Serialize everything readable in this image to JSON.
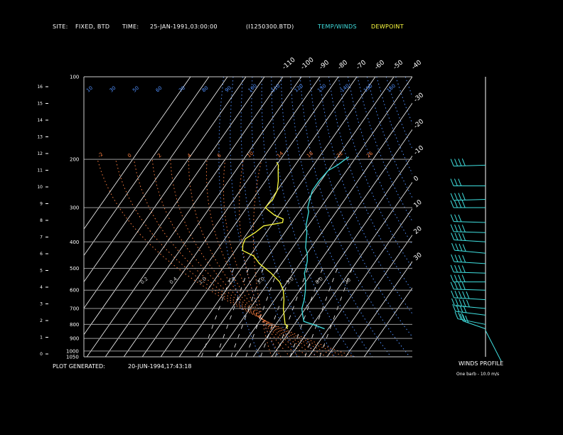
{
  "header": {
    "site_label": "SITE:",
    "site_value": "FIXED, BTD",
    "time_label": "TIME:",
    "time_value": "25-JAN-1991,03:00:00",
    "file_id": "(I1250300.BTD)",
    "legend_temp": "TEMP/WINDS",
    "legend_dew": "DEWPOINT"
  },
  "footer": {
    "generated_label": "PLOT GENERATED:",
    "generated_value": "20-JUN-1994,17:43:18",
    "winds_title": "WINDS PROFILE",
    "barb_note": "One barb - 10.0 m/s"
  },
  "colors": {
    "temperature": "#40e0e0",
    "dewpoint": "#ffff40",
    "isotherm": "#ffffff",
    "dry_adiabat": "#5090ff",
    "moist_adiabat": "#ff8040",
    "mixing_ratio": "#ffffff",
    "background": "#000000"
  },
  "chart_data": {
    "type": "skew-t",
    "pressure_levels": [
      100,
      200,
      300,
      400,
      500,
      600,
      700,
      800,
      900,
      1000,
      1050
    ],
    "height_ticks": [
      "0",
      "1",
      "2",
      "3",
      "4",
      "5",
      "6",
      "7",
      "8",
      "9",
      "10",
      "11",
      "12",
      "13",
      "14",
      "15",
      "16"
    ],
    "isotherm_labels": [
      "-110",
      "-100",
      "-90",
      "-80",
      "-70",
      "-60",
      "-50",
      "-40",
      "-30",
      "-20",
      "-10",
      "0",
      "10",
      "20",
      "30"
    ],
    "dry_adiabat_labels": [
      "10",
      "30",
      "50",
      "60",
      "70",
      "80",
      "90",
      "100",
      "110",
      "120",
      "130",
      "140",
      "150",
      "160"
    ],
    "moist_adiabat_labels": [
      "-2",
      "0",
      "2",
      "4",
      "6",
      "10",
      "14",
      "18",
      "22",
      "26"
    ],
    "mixing_ratio_labels": [
      "0.2",
      "0.4",
      "1.0",
      "2.0",
      "3.0",
      "5.0",
      "8.0",
      "20"
    ],
    "temperature_profile": [
      {
        "p": 830,
        "t": 8
      },
      {
        "p": 800,
        "t": 0
      },
      {
        "p": 780,
        "t": -6
      },
      {
        "p": 740,
        "t": -9
      },
      {
        "p": 700,
        "t": -12
      },
      {
        "p": 650,
        "t": -14
      },
      {
        "p": 600,
        "t": -17
      },
      {
        "p": 560,
        "t": -20
      },
      {
        "p": 520,
        "t": -24
      },
      {
        "p": 500,
        "t": -25
      },
      {
        "p": 470,
        "t": -27
      },
      {
        "p": 440,
        "t": -30
      },
      {
        "p": 420,
        "t": -33
      },
      {
        "p": 390,
        "t": -36
      },
      {
        "p": 370,
        "t": -38
      },
      {
        "p": 350,
        "t": -41
      },
      {
        "p": 330,
        "t": -43
      },
      {
        "p": 310,
        "t": -45
      },
      {
        "p": 300,
        "t": -47
      },
      {
        "p": 280,
        "t": -49
      },
      {
        "p": 260,
        "t": -51
      },
      {
        "p": 240,
        "t": -51
      },
      {
        "p": 220,
        "t": -50
      },
      {
        "p": 210,
        "t": -47
      },
      {
        "p": 200,
        "t": -45
      },
      {
        "p": 196,
        "t": -44
      }
    ],
    "dewpoint_profile": [
      {
        "p": 830,
        "t": -12
      },
      {
        "p": 820,
        "t": -13
      },
      {
        "p": 810,
        "t": -13
      },
      {
        "p": 800,
        "t": -15
      },
      {
        "p": 700,
        "t": -22
      },
      {
        "p": 650,
        "t": -25
      },
      {
        "p": 600,
        "t": -29
      },
      {
        "p": 560,
        "t": -34
      },
      {
        "p": 520,
        "t": -42
      },
      {
        "p": 480,
        "t": -52
      },
      {
        "p": 450,
        "t": -58
      },
      {
        "p": 430,
        "t": -66
      },
      {
        "p": 410,
        "t": -68
      },
      {
        "p": 390,
        "t": -69
      },
      {
        "p": 370,
        "t": -66
      },
      {
        "p": 350,
        "t": -64
      },
      {
        "p": 340,
        "t": -55
      },
      {
        "p": 330,
        "t": -56
      },
      {
        "p": 320,
        "t": -62
      },
      {
        "p": 310,
        "t": -66
      },
      {
        "p": 300,
        "t": -70
      },
      {
        "p": 280,
        "t": -69
      },
      {
        "p": 260,
        "t": -70
      },
      {
        "p": 240,
        "t": -73
      },
      {
        "p": 220,
        "t": -77
      },
      {
        "p": 210,
        "t": -79
      },
      {
        "p": 205,
        "t": -81
      }
    ],
    "wind_profile": [
      {
        "p": 830,
        "dir": 315,
        "spd": 25
      },
      {
        "p": 800,
        "dir": 300,
        "spd": 30
      },
      {
        "p": 740,
        "dir": 290,
        "spd": 40
      },
      {
        "p": 700,
        "dir": 285,
        "spd": 45
      },
      {
        "p": 650,
        "dir": 280,
        "spd": 45
      },
      {
        "p": 600,
        "dir": 275,
        "spd": 40
      },
      {
        "p": 560,
        "dir": 270,
        "spd": 40
      },
      {
        "p": 520,
        "dir": 275,
        "spd": 35
      },
      {
        "p": 480,
        "dir": 280,
        "spd": 35
      },
      {
        "p": 440,
        "dir": 285,
        "spd": 40
      },
      {
        "p": 400,
        "dir": 280,
        "spd": 35
      },
      {
        "p": 370,
        "dir": 275,
        "spd": 35
      },
      {
        "p": 340,
        "dir": 275,
        "spd": 30
      },
      {
        "p": 300,
        "dir": 270,
        "spd": 35
      },
      {
        "p": 280,
        "dir": 265,
        "spd": 35
      },
      {
        "p": 250,
        "dir": 270,
        "spd": 30
      },
      {
        "p": 210,
        "dir": 265,
        "spd": 40
      }
    ]
  }
}
